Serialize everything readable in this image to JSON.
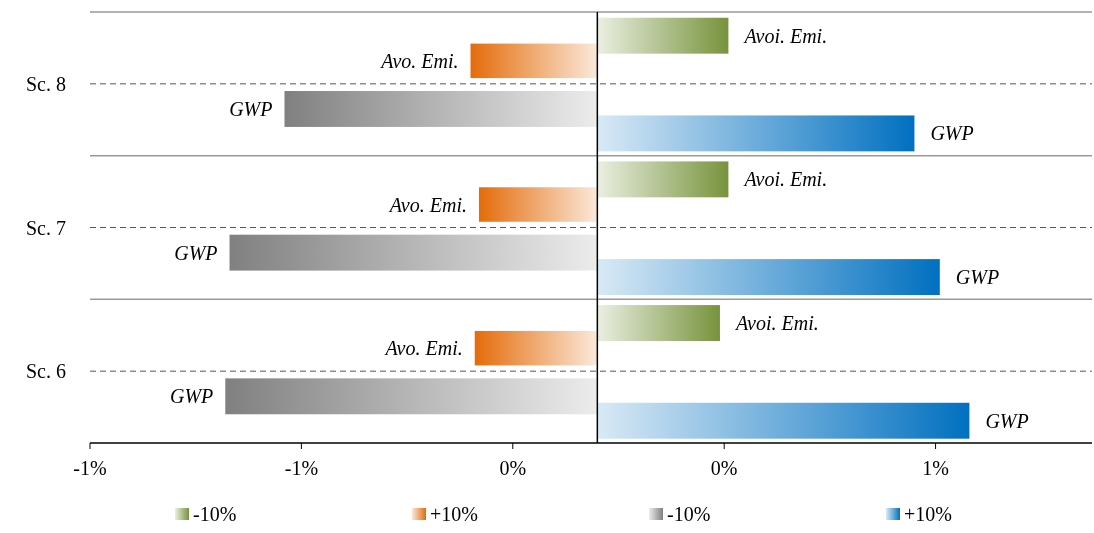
{
  "chart_data": {
    "type": "bar",
    "orientation": "horizontal",
    "categories": [
      "Sc. 8",
      "Sc. 7",
      "Sc. 6"
    ],
    "series": [
      {
        "name": "-10%",
        "color": "#77933c",
        "values": [
          0.31,
          0.31,
          0.29
        ],
        "value_labels": [
          "Avoi. Emi.",
          "Avoi. Emi.",
          "Avoi. Emi."
        ]
      },
      {
        "name": "+10%",
        "color": "#e46c0a",
        "values": [
          -0.3,
          -0.28,
          -0.29
        ],
        "value_labels": [
          "Avo. Emi.",
          "Avo. Emi.",
          "Avo. Emi."
        ]
      },
      {
        "name": "-10%",
        "color": "#808080",
        "values": [
          -0.74,
          -0.87,
          -0.88
        ],
        "value_labels": [
          "GWP",
          "GWP",
          "GWP"
        ]
      },
      {
        "name": "+10%",
        "color": "#0070c0",
        "values": [
          0.75,
          0.81,
          0.88
        ],
        "value_labels": [
          "GWP",
          "GWP",
          "GWP"
        ]
      }
    ],
    "xlim": [
      -1.2,
      1.17
    ],
    "xticks": [
      {
        "value": -1.2,
        "label": "-1%"
      },
      {
        "value": -0.7,
        "label": "-1%"
      },
      {
        "value": -0.2,
        "label": "0%"
      },
      {
        "value": 0.3,
        "label": "0%"
      },
      {
        "value": 0.8,
        "label": "1%"
      }
    ],
    "grid": "y",
    "legend": "bottom"
  }
}
